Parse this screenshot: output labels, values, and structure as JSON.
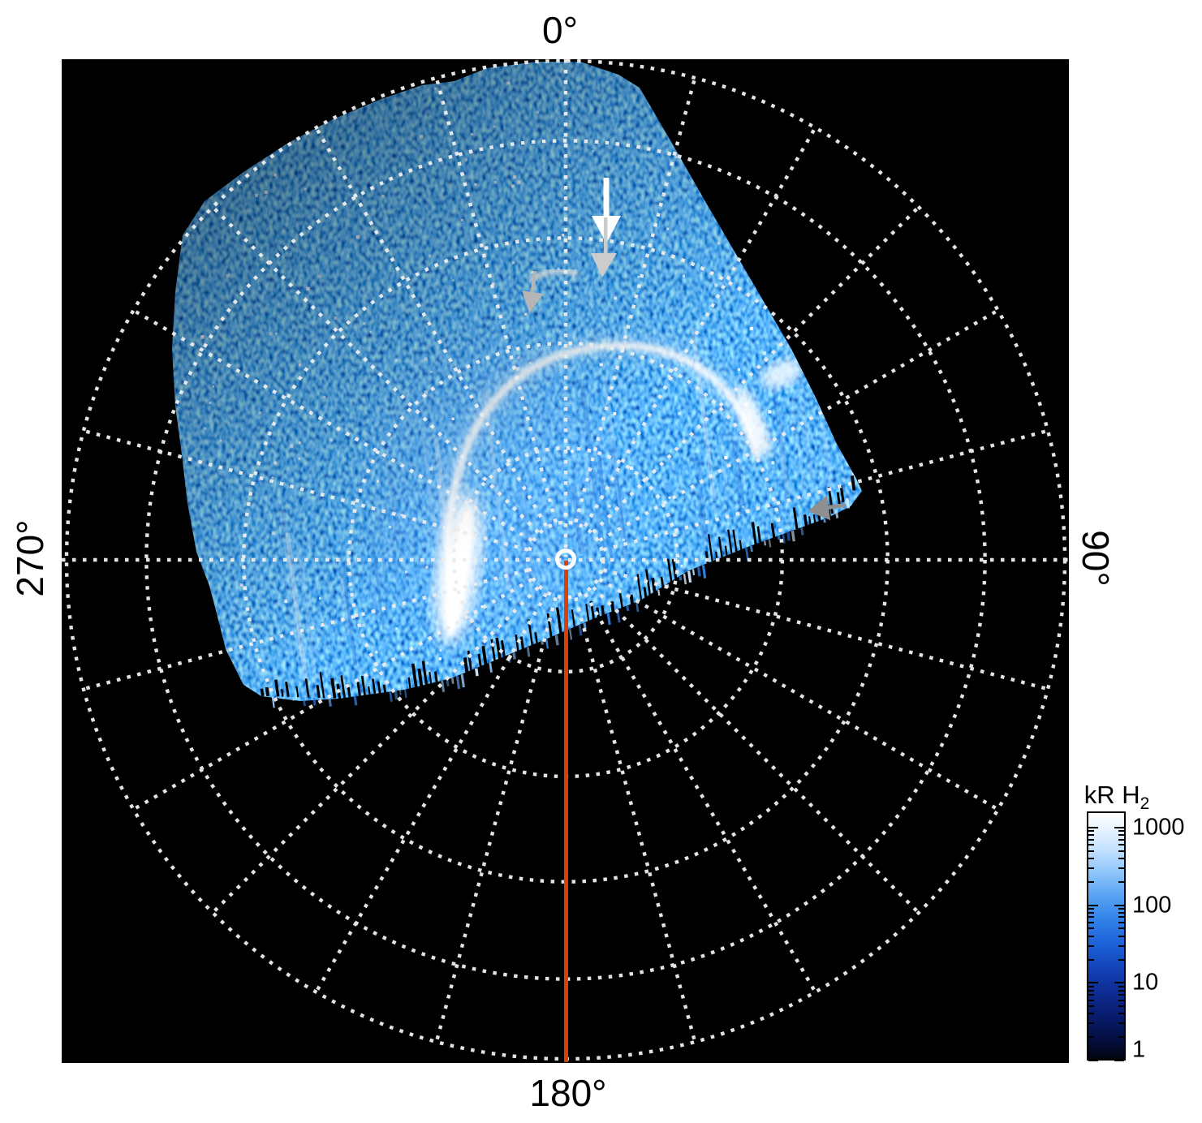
{
  "figure": {
    "angle_labels": {
      "top": "0°",
      "right": "90°",
      "bottom": "180°",
      "left": "270°"
    },
    "colorbar": {
      "title": "kR H",
      "title_sub": "2",
      "tick_labels": [
        "1000",
        "100",
        "10",
        "1"
      ]
    },
    "colors": {
      "page_bg": "#ffffff",
      "plot_bg": "#000000",
      "grid_dot": "#ededed",
      "red_line": "#d84008",
      "pole_ring": "#ffffff",
      "arrow_white": "#ffffff",
      "arrow_light_gray": "#cccccc",
      "arrow_mid_gray": "#b5b5b5",
      "arrow_dark_gray": "#8f8f8f",
      "noise_palette": [
        "#9fd0ff",
        "#5aa7f5",
        "#2e7ee0",
        "#d9ecff"
      ]
    }
  },
  "chart_data": {
    "type": "heatmap",
    "projection": "polar",
    "title": "",
    "azimuth_tick_labels": [
      "0°",
      "90°",
      "180°",
      "270°"
    ],
    "colorbar": {
      "title": "kR H2",
      "scale": "log",
      "range": [
        1,
        1000
      ],
      "tick_values": [
        1000,
        100,
        10,
        1
      ],
      "gradient": "black (1) -> dark blue -> blue -> light blue -> white (1000)"
    },
    "grid": {
      "style": "dotted white",
      "meridian_step_deg": 15,
      "ring_radii_fraction": [
        0.075,
        0.224,
        0.434,
        0.645,
        0.84,
        1.0
      ],
      "axes_full_span": [
        "0-180 vertical",
        "90-270 horizontal"
      ]
    },
    "coverage": "auroral image data fills the sector from ~255 deg through 0 deg to ~95 deg azimuth; remainder of the polar grid is empty (black)",
    "features": [
      {
        "name": "main-auroral-oval-arc",
        "desc": "bright emission arc from lower-left of pole curving over the pole-ward side to the right",
        "approx_intensity_kR": 1000
      },
      {
        "name": "bright-dawn-flank-streak",
        "desc": "very bright white vertical streak left/below center",
        "approx_intensity_kR": 1000
      },
      {
        "name": "upper-right-bright-patch",
        "desc": "enhanced emission patch near 60 deg azimuth",
        "approx_intensity_kR": 300
      },
      {
        "name": "high-latitude-arc",
        "desc": "small faint arc near 0 deg meridian marked by arrows",
        "approx_intensity_kR": 200
      },
      {
        "name": "white-annotation-arrow",
        "desc": "large white arrow pointing down at the high-latitude arc"
      },
      {
        "name": "gray-annotation-arrows",
        "desc": "two gray arrows near the 0 deg meridian and one gray arrow at the right data edge pointing left"
      }
    ],
    "markers": {
      "pole_marker": "small white ring at projection center",
      "meridian_line": "solid red-orange line drawn along the 180 deg meridian from center to plot edge"
    }
  }
}
